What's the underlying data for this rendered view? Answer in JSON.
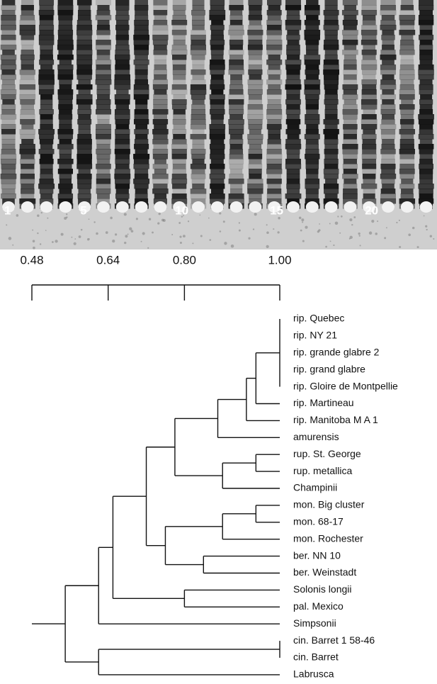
{
  "gel": {
    "lane_labels": [
      "1",
      "5",
      "10",
      "15",
      "20"
    ]
  },
  "dendrogram": {
    "xlim": [
      0.48,
      1.0
    ],
    "ticks": [
      0.48,
      0.64,
      {
        "value": 0.8,
        "label": "0.80"
      },
      {
        "value": 1.0,
        "label": "1.00"
      }
    ],
    "tree": {
      "similarity": 0.55,
      "children": [
        {
          "similarity": 0.62,
          "children": [
            {
              "similarity": 0.65,
              "children": [
                {
                  "similarity": 0.72,
                  "children": [
                    {
                      "similarity": 0.78,
                      "children": [
                        {
                          "similarity": 0.87,
                          "children": [
                            {
                              "similarity": 0.93,
                              "children": [
                                {
                                  "similarity": 0.95,
                                  "children": [
                                    {
                                      "similarity": 1.0,
                                      "children": [
                                        {
                                          "label": "rip.  Quebec"
                                        },
                                        {
                                          "label": "rip.  NY 21"
                                        },
                                        {
                                          "label": "rip.  grande glabre 2"
                                        },
                                        {
                                          "label": "rip.  grand glabre"
                                        },
                                        {
                                          "label": "rip.  Gloire de Montpellie"
                                        }
                                      ]
                                    },
                                    {
                                      "label": "rip.  Martineau"
                                    }
                                  ]
                                },
                                {
                                  "label": "rip.  Manitoba M A 1"
                                }
                              ]
                            },
                            {
                              "label": "amurensis"
                            }
                          ]
                        },
                        {
                          "similarity": 0.88,
                          "children": [
                            {
                              "similarity": 0.95,
                              "children": [
                                {
                                  "label": "rup.  St. George"
                                },
                                {
                                  "label": "rup.  metallica"
                                }
                              ]
                            },
                            {
                              "label": "Champinii"
                            }
                          ]
                        }
                      ]
                    },
                    {
                      "similarity": 0.76,
                      "children": [
                        {
                          "similarity": 0.88,
                          "children": [
                            {
                              "similarity": 0.95,
                              "children": [
                                {
                                  "label": "mon.  Big cluster"
                                },
                                {
                                  "label": "mon. 68-17"
                                }
                              ]
                            },
                            {
                              "label": "mon.  Rochester"
                            }
                          ]
                        },
                        {
                          "similarity": 0.84,
                          "children": [
                            {
                              "label": "ber.  NN 10"
                            },
                            {
                              "label": "ber.  Weinstadt"
                            }
                          ]
                        }
                      ]
                    }
                  ]
                },
                {
                  "similarity": 0.8,
                  "children": [
                    {
                      "label": "Solonis longii"
                    },
                    {
                      "label": "pal.  Mexico"
                    }
                  ]
                }
              ]
            },
            {
              "label": "Simpsonii"
            }
          ]
        },
        {
          "similarity": 0.62,
          "children": [
            {
              "similarity": 1.0,
              "children": [
                {
                  "label": "cin.  Barret 1 58-46"
                },
                {
                  "label": "cin.  Barret"
                }
              ]
            },
            {
              "label": "Labrusca"
            }
          ]
        }
      ]
    }
  }
}
